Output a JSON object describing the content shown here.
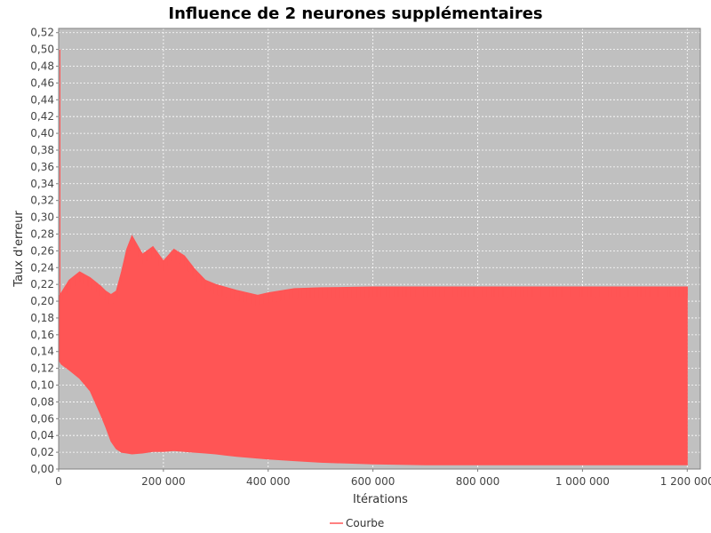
{
  "chart_data": {
    "type": "area",
    "title": "Influence de 2 neurones supplémentaires",
    "xlabel": "Itérations",
    "ylabel": "Taux d'erreur",
    "xlim": [
      0,
      1225000
    ],
    "ylim": [
      0,
      0.525
    ],
    "x_ticks": [
      0,
      200000,
      400000,
      600000,
      800000,
      1000000,
      1200000
    ],
    "x_tick_labels": [
      "0",
      "200 000",
      "400 000",
      "600 000",
      "800 000",
      "1 000 000",
      "1 200 000"
    ],
    "y_ticks": [
      0,
      0.02,
      0.04,
      0.06,
      0.08,
      0.1,
      0.12,
      0.14,
      0.16,
      0.18,
      0.2,
      0.22,
      0.24,
      0.26,
      0.28,
      0.3,
      0.32,
      0.34,
      0.36,
      0.38,
      0.4,
      0.42,
      0.44,
      0.46,
      0.48,
      0.5,
      0.52
    ],
    "y_tick_labels": [
      "0,00",
      "0,02",
      "0,04",
      "0,06",
      "0,08",
      "0,10",
      "0,12",
      "0,14",
      "0,16",
      "0,18",
      "0,20",
      "0,22",
      "0,24",
      "0,26",
      "0,28",
      "0,30",
      "0,32",
      "0,34",
      "0,36",
      "0,38",
      "0,40",
      "0,42",
      "0,44",
      "0,46",
      "0,48",
      "0,50",
      "0,52"
    ],
    "grid": true,
    "legend_position": "bottom-center",
    "background_color": "#c0c0c0",
    "series": [
      {
        "name": "Courbe",
        "color": "#ff5555",
        "x": [
          0,
          5000,
          20000,
          40000,
          60000,
          80000,
          90000,
          100000,
          110000,
          120000,
          130000,
          140000,
          160000,
          180000,
          200000,
          220000,
          240000,
          260000,
          280000,
          300000,
          340000,
          380000,
          400000,
          450000,
          500000,
          600000,
          700000,
          800000,
          900000,
          1000000,
          1100000,
          1200000
        ],
        "upper": [
          0.205,
          0.21,
          0.225,
          0.235,
          0.228,
          0.218,
          0.212,
          0.208,
          0.212,
          0.235,
          0.262,
          0.278,
          0.256,
          0.265,
          0.248,
          0.262,
          0.254,
          0.238,
          0.225,
          0.22,
          0.213,
          0.207,
          0.21,
          0.215,
          0.216,
          0.217,
          0.217,
          0.217,
          0.217,
          0.217,
          0.217,
          0.217
        ],
        "lower": [
          0.13,
          0.125,
          0.118,
          0.108,
          0.093,
          0.065,
          0.05,
          0.033,
          0.024,
          0.02,
          0.019,
          0.018,
          0.019,
          0.021,
          0.021,
          0.022,
          0.021,
          0.02,
          0.019,
          0.018,
          0.015,
          0.013,
          0.012,
          0.01,
          0.008,
          0.006,
          0.005,
          0.005,
          0.005,
          0.005,
          0.005,
          0.005
        ],
        "spike_max": 0.5
      }
    ]
  }
}
